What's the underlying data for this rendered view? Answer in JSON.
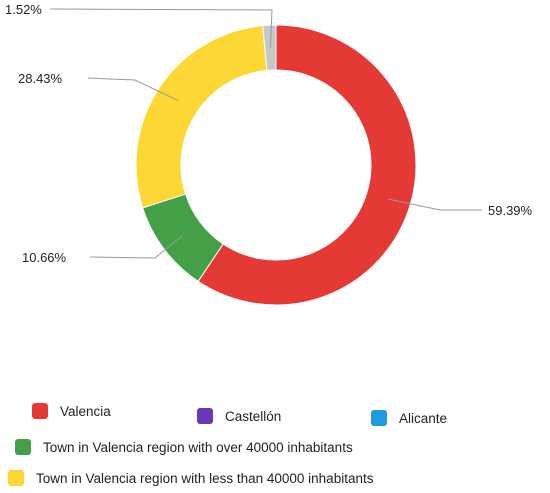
{
  "chart_data": {
    "type": "pie",
    "variant": "donut",
    "legend_position": "bottom",
    "series": [
      {
        "name": "Valencia",
        "value": 59.39,
        "label": "59.39%",
        "color": "#e53935"
      },
      {
        "name": "Castellón",
        "value": 0,
        "color": "#673ab7"
      },
      {
        "name": "Alicante",
        "value": 0,
        "color": "#1e9be3"
      },
      {
        "name": "Town in Valencia region with over 40000 inhabitants",
        "value": 10.66,
        "label": "10.66%",
        "color": "#43a047"
      },
      {
        "name": "Town in Valencia region with less than 40000 inhabitants",
        "value": 28.43,
        "label": "28.43%",
        "color": "#fdd835"
      },
      {
        "name": "",
        "value": 1.52,
        "label": "1.52%",
        "color": "#c8c8c8"
      }
    ]
  },
  "legend": [
    {
      "label": "Valencia",
      "color": "#e53935"
    },
    {
      "label": "Castellón",
      "color": "#673ab7"
    },
    {
      "label": "Alicante",
      "color": "#1e9be3"
    },
    {
      "label": "Town in Valencia region with over 40000 inhabitants",
      "color": "#43a047"
    },
    {
      "label": "Town in Valencia region with less than 40000 inhabitants",
      "color": "#fdd835"
    }
  ]
}
